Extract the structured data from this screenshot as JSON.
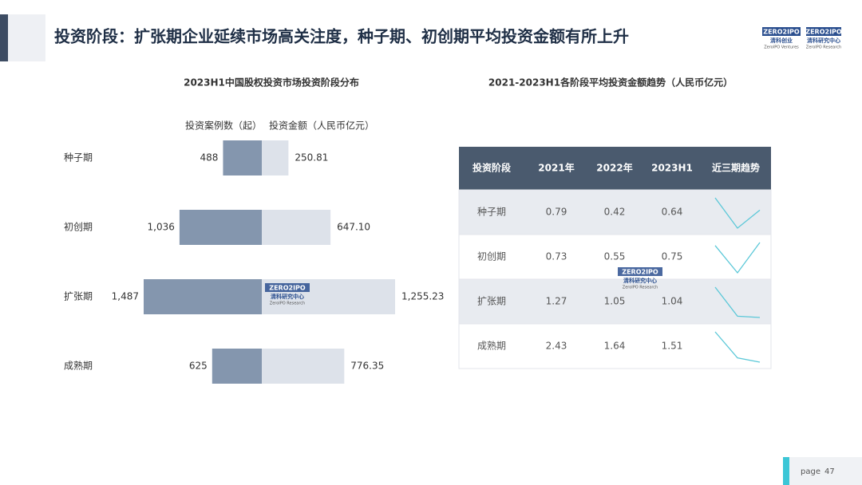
{
  "header": {
    "title": "投资阶段：扩张期企业延续市场高关注度，种子期、初创期平均投资金额有所上升",
    "logos": [
      {
        "mark": "ZERO2IPO",
        "name": "清科创业",
        "sub": "ZeroIPO Ventures"
      },
      {
        "mark": "ZERO2IPO",
        "name": "清科研究中心",
        "sub": "ZeroIPO Research"
      }
    ]
  },
  "chart_data": [
    {
      "type": "butterfly-bar",
      "title": "2023H1中国股权投资市场投资阶段分布",
      "categories": [
        "种子期",
        "初创期",
        "扩张期",
        "成熟期"
      ],
      "series": [
        {
          "name": "投资案例数（起）",
          "color": "#8496ae",
          "values": [
            488,
            1036,
            1487,
            625
          ],
          "value_labels": [
            "488",
            "1,036",
            "1,487",
            "625"
          ]
        },
        {
          "name": "投资金额（人民币亿元）",
          "color": "#dde2ea",
          "values": [
            250.81,
            647.1,
            1255.23,
            776.35
          ],
          "value_labels": [
            "250.81",
            "647.10",
            "1,255.23",
            "776.35"
          ]
        }
      ]
    }
  ],
  "table": {
    "title": "2021-2023H1各阶段平均投资金额趋势（人民币亿元）",
    "header": [
      "投资阶段",
      "2021年",
      "2022年",
      "2023H1",
      "近三期趋势"
    ],
    "rows": [
      [
        "种子期",
        0.79,
        0.42,
        0.64
      ],
      [
        "初创期",
        0.73,
        0.55,
        0.75
      ],
      [
        "扩张期",
        1.27,
        1.05,
        1.04
      ],
      [
        "成熟期",
        2.43,
        1.64,
        1.51
      ]
    ],
    "trend_color": "#5bc8d8"
  },
  "footer": {
    "label": "page",
    "number": 47
  }
}
